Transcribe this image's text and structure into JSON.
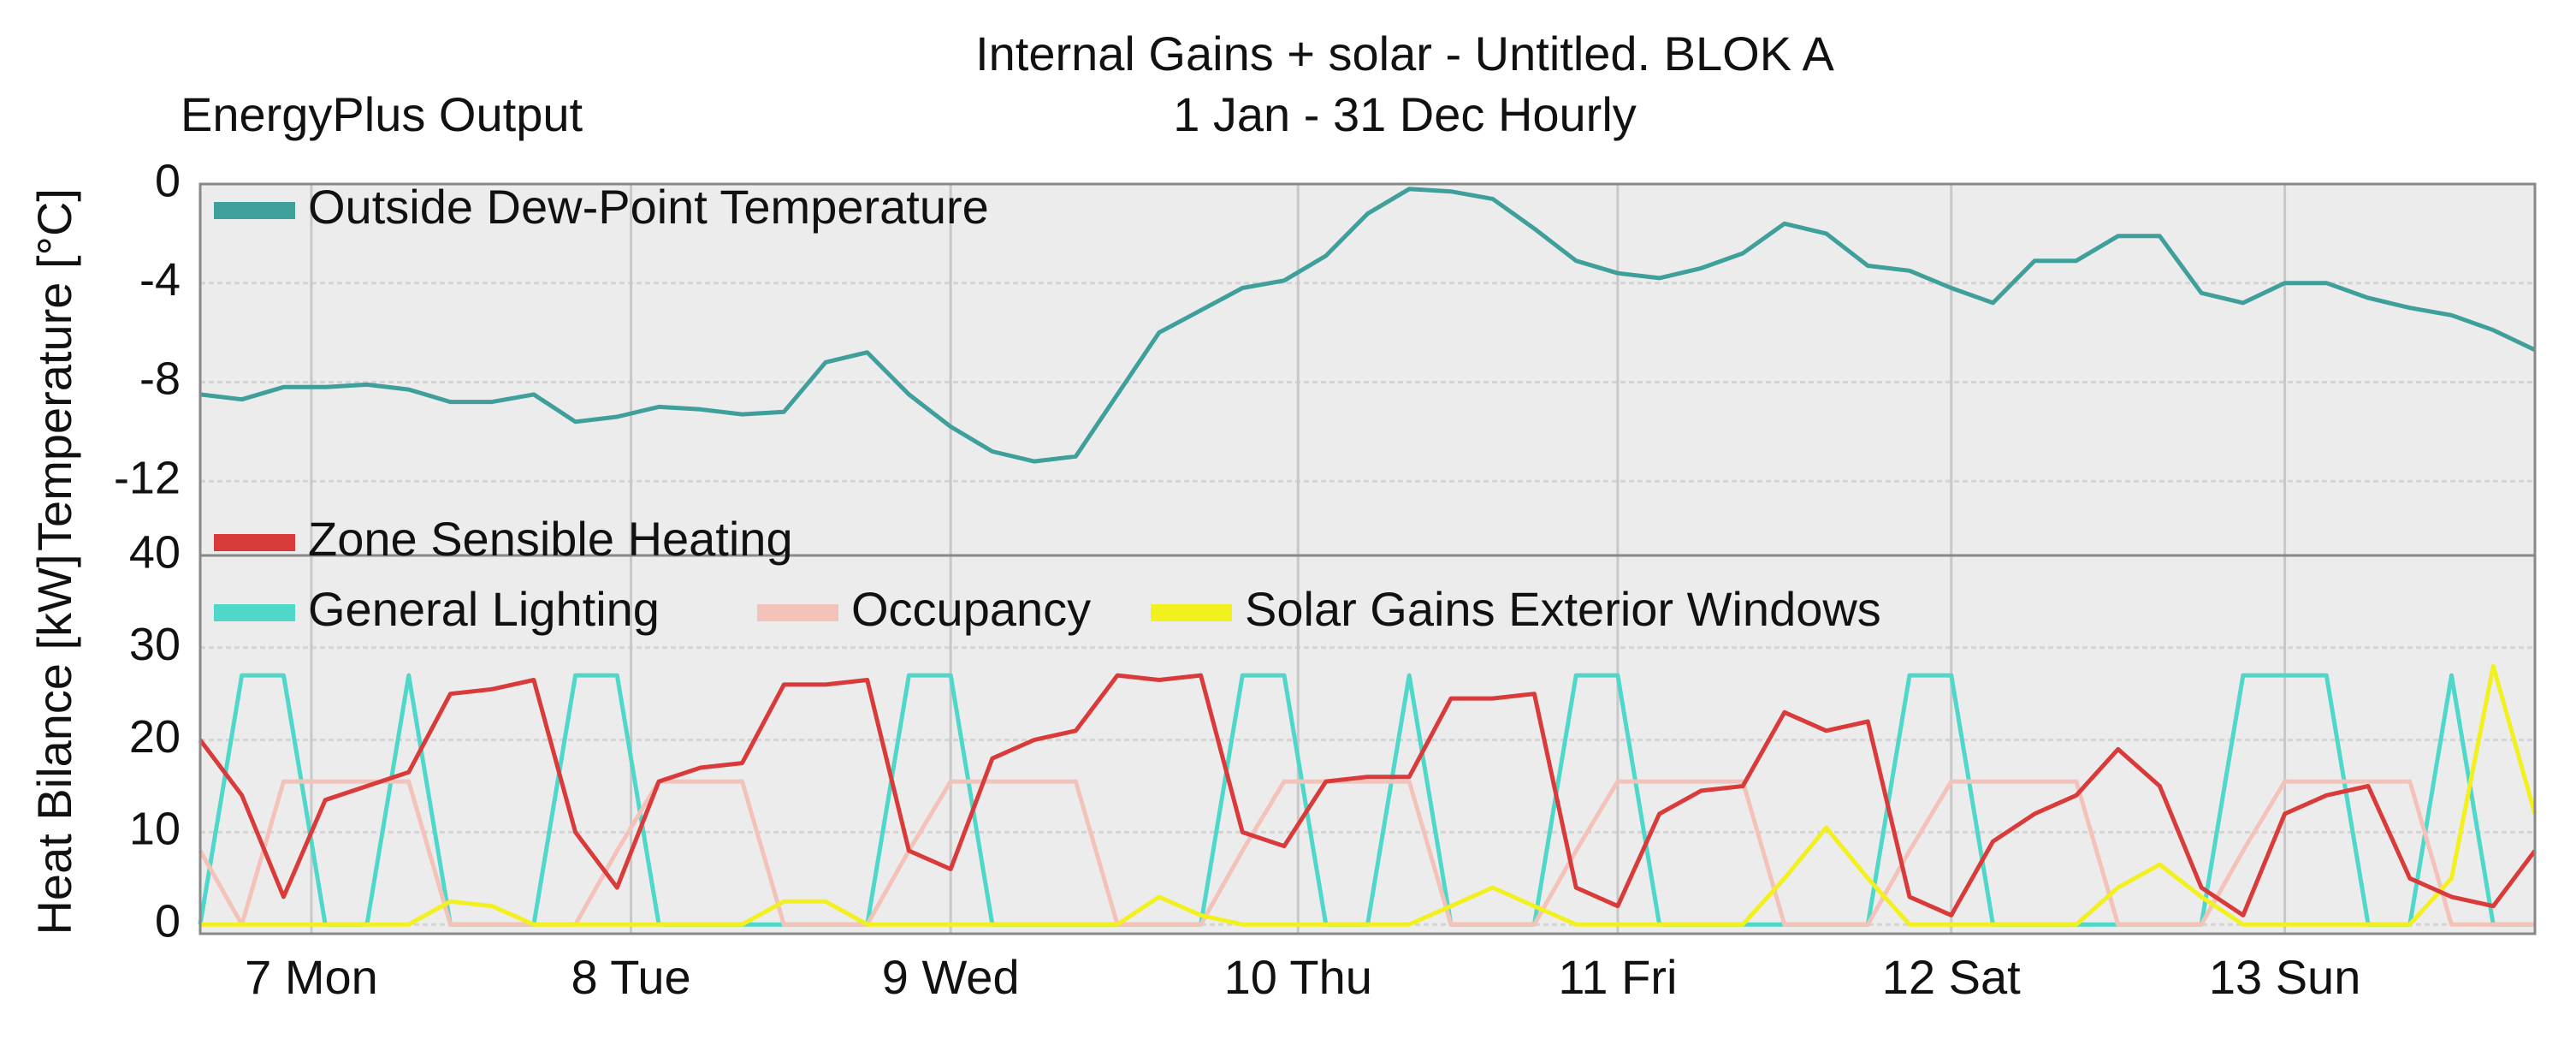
{
  "chart_data": [
    {
      "type": "line",
      "title": "Internal Gains + solar - Untitled. BLOK A",
      "subtitle": "1 Jan - 31 Dec Hourly",
      "annotation": "EnergyPlus Output",
      "y_label": "Temperature [°C]",
      "x": [
        0,
        3,
        6,
        9,
        12,
        15,
        18,
        21,
        24,
        27,
        30,
        33,
        36,
        39,
        42,
        45,
        48,
        51,
        54,
        57,
        60,
        63,
        66,
        69,
        72,
        75,
        78,
        81,
        84,
        87,
        90,
        93,
        96,
        99,
        102,
        105,
        108,
        111,
        114,
        117,
        120,
        123,
        126,
        129,
        132,
        135,
        138,
        141,
        144,
        147,
        150,
        153,
        156,
        159,
        162,
        165,
        168
      ],
      "xlim": [
        0,
        168
      ],
      "ylim": [
        -15,
        0
      ],
      "yticks": [
        0,
        -4,
        -8,
        -12
      ],
      "grid": true,
      "legend": "upper left",
      "series": [
        {
          "name": "Outside Dew-Point Temperature",
          "color": "#3f9f9a",
          "values": [
            -8.5,
            -8.7,
            -8.2,
            -8.2,
            -8.1,
            -8.3,
            -8.8,
            -8.8,
            -8.5,
            -9.6,
            -9.4,
            -9.0,
            -9.1,
            -9.3,
            -9.2,
            -7.2,
            -6.8,
            -8.5,
            -9.8,
            -10.8,
            -11.2,
            -11.0,
            -8.5,
            -6.0,
            -5.1,
            -4.2,
            -3.9,
            -2.9,
            -1.2,
            -0.2,
            -0.3,
            -0.6,
            -1.8,
            -3.1,
            -3.6,
            -3.8,
            -3.4,
            -2.8,
            -1.6,
            -2.0,
            -3.3,
            -3.5,
            -4.2,
            -4.8,
            -3.1,
            -3.1,
            -2.1,
            -2.1,
            -4.4,
            -4.8,
            -4.0,
            -4.0,
            -4.6,
            -5.0,
            -5.3,
            -5.9,
            -6.7
          ]
        }
      ]
    },
    {
      "type": "line",
      "y_label": "Heat Bilance [kW]",
      "x": [
        0,
        3,
        6,
        9,
        12,
        15,
        18,
        21,
        24,
        27,
        30,
        33,
        36,
        39,
        42,
        45,
        48,
        51,
        54,
        57,
        60,
        63,
        66,
        69,
        72,
        75,
        78,
        81,
        84,
        87,
        90,
        93,
        96,
        99,
        102,
        105,
        108,
        111,
        114,
        117,
        120,
        123,
        126,
        129,
        132,
        135,
        138,
        141,
        144,
        147,
        150,
        153,
        156,
        159,
        162,
        165,
        168
      ],
      "xlim": [
        0,
        168
      ],
      "xticks": [
        {
          "value": 8,
          "label": "7 Mon"
        },
        {
          "value": 31,
          "label": "8 Tue"
        },
        {
          "value": 54,
          "label": "9 Wed"
        },
        {
          "value": 79,
          "label": "10 Thu"
        },
        {
          "value": 102,
          "label": "11 Fri"
        },
        {
          "value": 126,
          "label": "12 Sat"
        },
        {
          "value": 150,
          "label": "13 Sun"
        }
      ],
      "ylim": [
        -1,
        40
      ],
      "yticks": [
        40,
        30,
        20,
        10,
        0
      ],
      "grid": true,
      "legend": "upper left",
      "series": [
        {
          "name": "Zone Sensible Heating",
          "color": "#d93a3a",
          "values": [
            20,
            14,
            3,
            13.5,
            15,
            16.5,
            25,
            25.5,
            26.5,
            10,
            4,
            15.5,
            17,
            17.5,
            26,
            26,
            26.5,
            8,
            6,
            18,
            20,
            21,
            27,
            26.5,
            27,
            10,
            8.5,
            15.5,
            16,
            16,
            24.5,
            24.5,
            25,
            4,
            2,
            12,
            14.5,
            15,
            23,
            21,
            22,
            3,
            1,
            9,
            12,
            14,
            19,
            15,
            4,
            1,
            12,
            14,
            15,
            5,
            3,
            2,
            8
          ]
        },
        {
          "name": "General Lighting",
          "color": "#4fd8c9",
          "values": [
            0,
            27,
            27,
            0,
            0,
            27,
            0,
            0,
            0,
            27,
            27,
            0,
            0,
            0,
            0,
            0,
            0,
            27,
            27,
            0,
            0,
            0,
            0,
            0,
            0,
            27,
            27,
            0,
            0,
            27,
            0,
            0,
            0,
            27,
            27,
            0,
            0,
            0,
            0,
            0,
            0,
            27,
            27,
            0,
            0,
            0,
            0,
            0,
            0,
            27,
            27,
            27,
            0,
            0,
            27,
            0,
            0
          ]
        },
        {
          "name": "Occupancy",
          "color": "#f3c3b9",
          "values": [
            8,
            0,
            15.5,
            15.5,
            15.5,
            15.5,
            0,
            0,
            0,
            0,
            8,
            15.5,
            15.5,
            15.5,
            0,
            0,
            0,
            8,
            15.5,
            15.5,
            15.5,
            15.5,
            0,
            0,
            0,
            8,
            15.5,
            15.5,
            15.5,
            15.5,
            0,
            0,
            0,
            8,
            15.5,
            15.5,
            15.5,
            15.5,
            0,
            0,
            0,
            8,
            15.5,
            15.5,
            15.5,
            15.5,
            0,
            0,
            0,
            8,
            15.5,
            15.5,
            15.5,
            15.5,
            0,
            0,
            0
          ]
        },
        {
          "name": "Solar Gains Exterior Windows",
          "color": "#f2f01e",
          "values": [
            0,
            0,
            0,
            0,
            0,
            0,
            2.5,
            2,
            0,
            0,
            0,
            0,
            0,
            0,
            2.5,
            2.5,
            0,
            0,
            0,
            0,
            0,
            0,
            0,
            3,
            1,
            0,
            0,
            0,
            0,
            0,
            2,
            4,
            2,
            0,
            0,
            0,
            0,
            0,
            5,
            10.5,
            5,
            0,
            0,
            0,
            0,
            0,
            4,
            6.5,
            3,
            0,
            0,
            0,
            0,
            0,
            5,
            28,
            12
          ]
        }
      ]
    }
  ]
}
